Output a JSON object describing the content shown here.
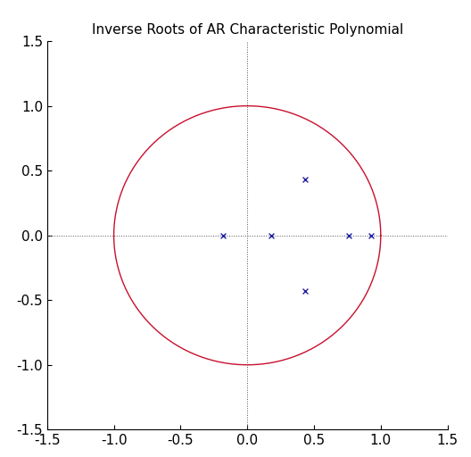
{
  "chart_data": {
    "type": "scatter",
    "title": "Inverse Roots of AR Characteristic Polynomial",
    "x": [
      -0.18,
      0.18,
      0.43,
      0.43,
      0.76,
      0.93
    ],
    "values": [
      0.0,
      0.0,
      0.43,
      -0.43,
      0.0,
      0.0
    ],
    "color": "#1f1f9e",
    "marker": "x",
    "circle_radius": 1,
    "xlim": [
      -1.5,
      1.5
    ],
    "ylim": [
      -1.5,
      1.5
    ],
    "xticks": [
      -1.5,
      -1.0,
      -0.5,
      0.0,
      0.5,
      1.0,
      1.5
    ],
    "yticks": [
      -1.5,
      -1.0,
      -0.5,
      0.0,
      0.5,
      1.0,
      1.5
    ],
    "grid": false
  }
}
